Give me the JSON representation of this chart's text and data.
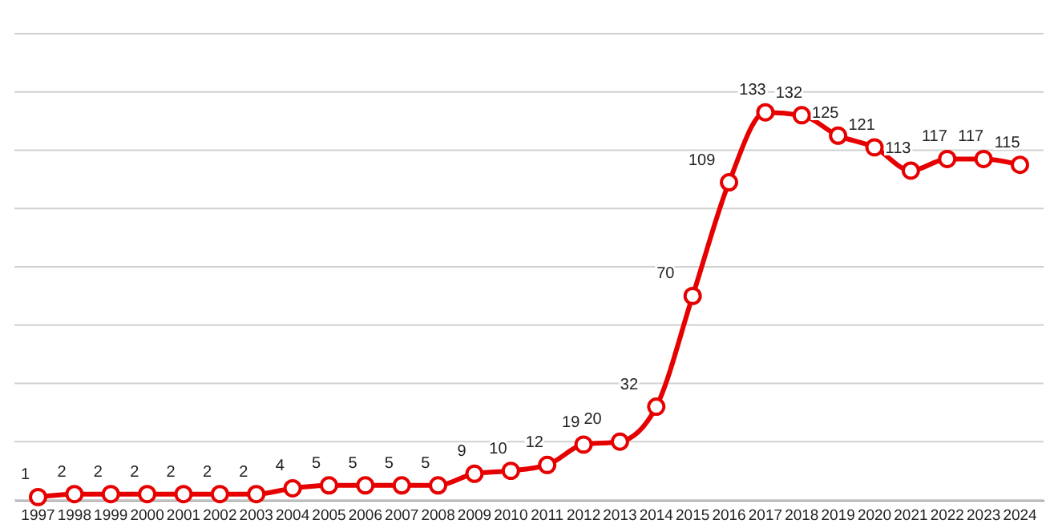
{
  "chart_data": {
    "type": "line",
    "categories": [
      "1997",
      "1998",
      "1999",
      "2000",
      "2001",
      "2002",
      "2003",
      "2004",
      "2005",
      "2006",
      "2007",
      "2008",
      "2009",
      "2010",
      "2011",
      "2012",
      "2013",
      "2014",
      "2015",
      "2016",
      "2017",
      "2018",
      "2019",
      "2020",
      "2021",
      "2022",
      "2023",
      "2024"
    ],
    "series": [
      {
        "color": "#e60000",
        "values": [
          1,
          2,
          2,
          2,
          2,
          2,
          2,
          4,
          5,
          5,
          5,
          5,
          9,
          10,
          12,
          19,
          20,
          32,
          70,
          109,
          133,
          132,
          125,
          121,
          113,
          117,
          117,
          115
        ]
      }
    ],
    "ylim": [
      0,
      160
    ],
    "yticks": [
      {
        "value": 0,
        "label": null
      },
      {
        "value": 20,
        "label": null
      },
      {
        "value": 40,
        "label": null
      },
      {
        "value": 60,
        "label": null
      },
      {
        "value": 80,
        "label": null
      },
      {
        "value": 100,
        "label": null
      },
      {
        "value": 120,
        "label": null
      },
      {
        "value": 140,
        "label": null
      },
      {
        "value": 160,
        "label": null
      }
    ],
    "tick_labels": "x",
    "grid": "y",
    "marker": "circle",
    "line_style": "solid",
    "data_labels": true
  }
}
